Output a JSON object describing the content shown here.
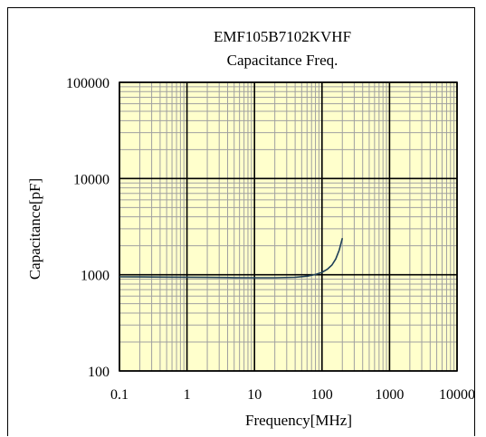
{
  "chart_data": {
    "type": "line",
    "title": "EMF105B7102KVHF",
    "subtitle": "Capacitance Freq.",
    "xlabel": "Frequency[MHz]",
    "ylabel": "Capacitance[pF]",
    "xscale": "log",
    "yscale": "log",
    "xlim": [
      0.1,
      10000
    ],
    "ylim": [
      100,
      100000
    ],
    "x_ticks": [
      "0.1",
      "1",
      "10",
      "100",
      "1000",
      "10000"
    ],
    "y_ticks": [
      "100",
      "1000",
      "10000",
      "100000"
    ],
    "grid": true,
    "legend": "none",
    "background_color": "#ffffcc",
    "minor_grid_color": "#a0a0a0",
    "major_grid_color": "#000000",
    "series_color": "#1f3f57",
    "series": [
      {
        "x": [
          0.1,
          0.2,
          0.5,
          1,
          2,
          5,
          10,
          20,
          40,
          60,
          80,
          100,
          120,
          140,
          160,
          180,
          200
        ],
        "y": [
          950,
          948,
          945,
          942,
          938,
          933,
          930,
          930,
          940,
          965,
          1005,
          1060,
          1140,
          1260,
          1460,
          1800,
          2400
        ]
      }
    ]
  }
}
